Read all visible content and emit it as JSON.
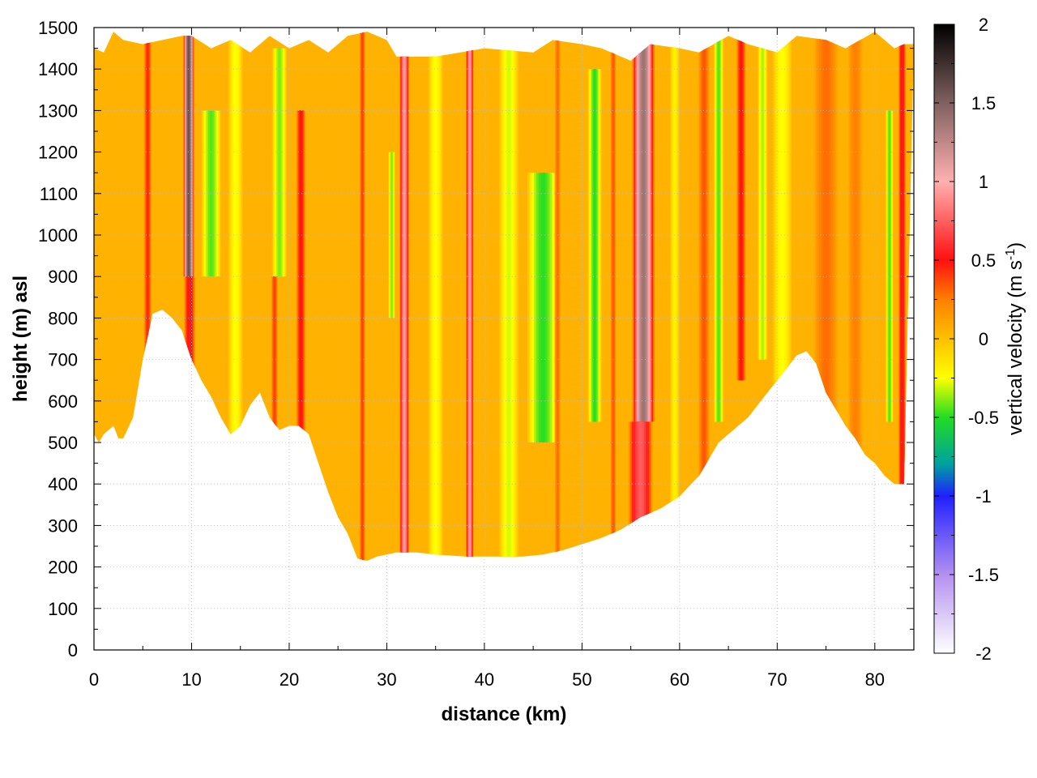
{
  "chart_data": {
    "type": "heatmap",
    "title": "",
    "xlabel": "distance (km)",
    "ylabel": "height (m) asl",
    "xlim": [
      0,
      84
    ],
    "ylim": [
      0,
      1500
    ],
    "x_ticks": [
      0,
      10,
      20,
      30,
      40,
      50,
      60,
      70,
      80
    ],
    "y_ticks": [
      0,
      100,
      200,
      300,
      400,
      500,
      600,
      700,
      800,
      900,
      1000,
      1100,
      1200,
      1300,
      1400,
      1500
    ],
    "grid": true,
    "colorbar": {
      "label_main": "vertical velocity (m s",
      "label_sup": "-1",
      "label_close": ")",
      "range": [
        -2,
        2
      ],
      "ticks": [
        "-2",
        "-1.5",
        "-1",
        "-0.5",
        "0",
        "0.5",
        "1",
        "1.5",
        "2"
      ],
      "stops": [
        {
          "v": -2.0,
          "color": "#ffffff"
        },
        {
          "v": -1.5,
          "color": "#b490f0"
        },
        {
          "v": -1.0,
          "color": "#2020ff"
        },
        {
          "v": -0.8,
          "color": "#00a0a0"
        },
        {
          "v": -0.5,
          "color": "#22dd22"
        },
        {
          "v": -0.25,
          "color": "#ffff00"
        },
        {
          "v": 0.0,
          "color": "#ffc000"
        },
        {
          "v": 0.25,
          "color": "#ff8000"
        },
        {
          "v": 0.5,
          "color": "#ff1010"
        },
        {
          "v": 1.0,
          "color": "#ffb0b0"
        },
        {
          "v": 1.5,
          "color": "#806060"
        },
        {
          "v": 2.0,
          "color": "#000000"
        }
      ]
    },
    "terrain": {
      "x": [
        0,
        0.5,
        1,
        2,
        2.5,
        3,
        4,
        5,
        6,
        7,
        8,
        9,
        10,
        11,
        12,
        13,
        14,
        15,
        16,
        17,
        18,
        19,
        20,
        21,
        22,
        23,
        24,
        25,
        26,
        27,
        28,
        29,
        30,
        31,
        32,
        33,
        35,
        38,
        40,
        42,
        44,
        46,
        48,
        50,
        52,
        54,
        56,
        58,
        60,
        62,
        64,
        65,
        66,
        67,
        68,
        69,
        70,
        71,
        72,
        73,
        74,
        75,
        76,
        77,
        78,
        79,
        80,
        81,
        82,
        83
      ],
      "height": [
        520,
        500,
        520,
        540,
        510,
        510,
        560,
        700,
        810,
        820,
        800,
        770,
        700,
        650,
        610,
        560,
        520,
        540,
        590,
        620,
        560,
        530,
        540,
        540,
        520,
        450,
        380,
        320,
        280,
        220,
        215,
        225,
        230,
        235,
        235,
        235,
        230,
        225,
        225,
        225,
        225,
        230,
        240,
        255,
        270,
        290,
        320,
        340,
        370,
        420,
        500,
        520,
        540,
        560,
        590,
        620,
        650,
        680,
        710,
        720,
        690,
        620,
        580,
        540,
        510,
        470,
        450,
        420,
        400,
        400
      ]
    },
    "top_edge": {
      "x": [
        0,
        1,
        2,
        3,
        5,
        7,
        9,
        10,
        12,
        14,
        16,
        18,
        20,
        22,
        24,
        26,
        28,
        30,
        31,
        35,
        40,
        45,
        47,
        50,
        52,
        55,
        57,
        60,
        62,
        65,
        67,
        70,
        72,
        75,
        77,
        80,
        81,
        82,
        83,
        84
      ],
      "height": [
        1450,
        1440,
        1490,
        1470,
        1460,
        1470,
        1480,
        1480,
        1450,
        1470,
        1440,
        1480,
        1450,
        1470,
        1440,
        1480,
        1490,
        1470,
        1430,
        1430,
        1450,
        1440,
        1470,
        1460,
        1450,
        1420,
        1460,
        1450,
        1440,
        1480,
        1460,
        1440,
        1480,
        1470,
        1450,
        1490,
        1470,
        1450,
        1460,
        1460
      ]
    },
    "bands": [
      {
        "x": 5.5,
        "w": 0.8,
        "v": 0.45,
        "lo": 0,
        "hi": 2000
      },
      {
        "x": 9.7,
        "w": 1.1,
        "v": 1.6,
        "lo": 900,
        "hi": 2000
      },
      {
        "x": 9.8,
        "w": 1.2,
        "v": 0.55,
        "lo": 0,
        "hi": 900
      },
      {
        "x": 12.0,
        "w": 2.0,
        "v": -0.45,
        "lo": 900,
        "hi": 1300
      },
      {
        "x": 14.5,
        "w": 1.5,
        "v": -0.25,
        "lo": 0,
        "hi": 2000
      },
      {
        "x": 19.0,
        "w": 1.5,
        "v": -0.4,
        "lo": 900,
        "hi": 1450
      },
      {
        "x": 18.5,
        "w": 0.7,
        "v": 0.4,
        "lo": 0,
        "hi": 900
      },
      {
        "x": 21.2,
        "w": 1.0,
        "v": 0.5,
        "lo": 0,
        "hi": 1300
      },
      {
        "x": 27.5,
        "w": 0.6,
        "v": 0.4,
        "lo": 0,
        "hi": 2000
      },
      {
        "x": 30.5,
        "w": 0.7,
        "v": -0.4,
        "lo": 800,
        "hi": 1200
      },
      {
        "x": 31.8,
        "w": 1.0,
        "v": 0.95,
        "lo": 0,
        "hi": 2000
      },
      {
        "x": 35.0,
        "w": 1.5,
        "v": -0.25,
        "lo": 0,
        "hi": 2000
      },
      {
        "x": 38.5,
        "w": 0.8,
        "v": 0.95,
        "lo": 0,
        "hi": 2000
      },
      {
        "x": 42.5,
        "w": 2.0,
        "v": -0.3,
        "lo": 0,
        "hi": 2000
      },
      {
        "x": 46.0,
        "w": 3.2,
        "v": -0.5,
        "lo": 500,
        "hi": 1150
      },
      {
        "x": 47.5,
        "w": 0.6,
        "v": 0.3,
        "lo": 0,
        "hi": 2000
      },
      {
        "x": 51.3,
        "w": 1.4,
        "v": -0.5,
        "lo": 550,
        "hi": 1400
      },
      {
        "x": 53.2,
        "w": 0.6,
        "v": 0.35,
        "lo": 0,
        "hi": 2000
      },
      {
        "x": 56.3,
        "w": 2.3,
        "v": 1.4,
        "lo": 550,
        "hi": 2000
      },
      {
        "x": 56.0,
        "w": 2.5,
        "v": 0.75,
        "lo": 0,
        "hi": 550
      },
      {
        "x": 59.5,
        "w": 1.0,
        "v": -0.2,
        "lo": 0,
        "hi": 2000
      },
      {
        "x": 62.5,
        "w": 1.2,
        "v": 0.35,
        "lo": 0,
        "hi": 2000
      },
      {
        "x": 64.0,
        "w": 1.0,
        "v": -0.45,
        "lo": 550,
        "hi": 2000
      },
      {
        "x": 66.3,
        "w": 1.0,
        "v": 0.5,
        "lo": 650,
        "hi": 2000
      },
      {
        "x": 68.5,
        "w": 1.0,
        "v": -0.35,
        "lo": 700,
        "hi": 2000
      },
      {
        "x": 70.5,
        "w": 2.0,
        "v": -0.25,
        "lo": 0,
        "hi": 2000
      },
      {
        "x": 75.0,
        "w": 2.5,
        "v": 0.3,
        "lo": 0,
        "hi": 2000
      },
      {
        "x": 78.0,
        "w": 1.5,
        "v": 0.25,
        "lo": 0,
        "hi": 2000
      },
      {
        "x": 81.5,
        "w": 0.8,
        "v": -0.45,
        "lo": 550,
        "hi": 1300
      },
      {
        "x": 82.8,
        "w": 0.8,
        "v": 0.55,
        "lo": 0,
        "hi": 2000
      }
    ],
    "background_value": 0.05
  }
}
